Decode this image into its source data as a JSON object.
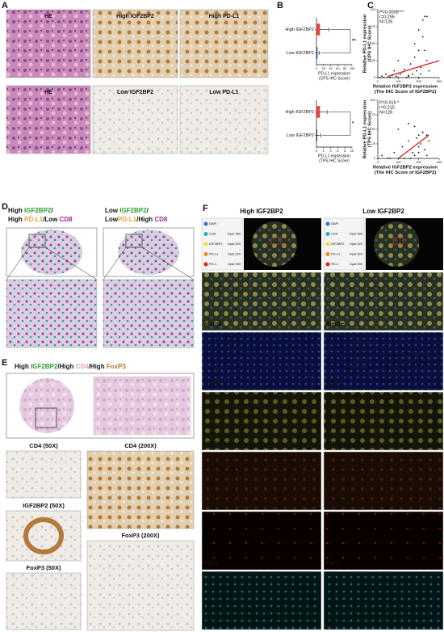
{
  "figure": {
    "A": {
      "label": "A",
      "captions": [
        "HE",
        "High IGF2BP2",
        "High PD-L1",
        "HE",
        "Low IGF2BP2",
        "Low PD-L1"
      ]
    },
    "B": {
      "label": "B"
    },
    "C": {
      "label": "C"
    },
    "D": {
      "label": "D",
      "left_title": [
        [
          {
            "text": "High ",
            "color": "#111111"
          },
          {
            "text": "IGF2BP2",
            "color": "#2ca02c"
          },
          {
            "text": "/",
            "color": "#111111"
          }
        ],
        [
          {
            "text": "High ",
            "color": "#111111"
          },
          {
            "text": "PD-L1",
            "color": "#e8a040"
          },
          {
            "text": "/Low ",
            "color": "#111111"
          },
          {
            "text": "CD8",
            "color": "#a0288c"
          }
        ]
      ],
      "right_title": [
        [
          {
            "text": "Low ",
            "color": "#111111"
          },
          {
            "text": "IGF2BP2",
            "color": "#2ca02c"
          },
          {
            "text": "/",
            "color": "#111111"
          }
        ],
        [
          {
            "text": "Low",
            "color": "#111111"
          },
          {
            "text": "PD-L1",
            "color": "#e8a040"
          },
          {
            "text": "/High ",
            "color": "#111111"
          },
          {
            "text": "CD8",
            "color": "#a0288c"
          }
        ]
      ]
    },
    "E": {
      "label": "E",
      "title": [
        {
          "text": "High ",
          "color": "#111111"
        },
        {
          "text": "IGF2BP2",
          "color": "#2ca02c"
        },
        {
          "text": "/High ",
          "color": "#111111"
        },
        {
          "text": "CD4",
          "color": "#e6a0c8"
        },
        {
          "text": "/High ",
          "color": "#111111"
        },
        {
          "text": "FoxP3",
          "color": "#b0782a"
        }
      ],
      "captions": [
        "CD4 (50X)",
        "CD4 (200X)",
        "IGF2BP2 (50X)",
        "FoxP3 (50X)",
        "FoxP3 (200X)"
      ]
    },
    "F": {
      "label": "F",
      "columns": [
        "High IGF2BP2",
        "Low IGF2BP2"
      ],
      "legend": [
        {
          "name": "DAPI",
          "color": "#3a6fd8"
        },
        {
          "name": "CD8",
          "opal": "Opal 480",
          "color": "#20b0c0"
        },
        {
          "name": "IGF2BP2",
          "opal": "Opal 520",
          "color": "#e8e030"
        },
        {
          "name": "PD-L1",
          "opal": "Opal 620",
          "color": "#e88a20"
        },
        {
          "name": "PD-1",
          "opal": "Opal 690",
          "color": "#e02020"
        }
      ],
      "rows": [
        {
          "name": "Merge",
          "color": "#ffffff"
        },
        {
          "name": "DAPI",
          "color": "#3a6fd8"
        },
        {
          "name": "IGF2BP2",
          "color": "#e8e030"
        },
        {
          "name": "PD-L1",
          "color": "#e88a20"
        },
        {
          "name": "PD-1",
          "color": "#e02020"
        },
        {
          "name": "CD8",
          "color": "#20b0c0"
        }
      ]
    }
  },
  "chart_data": [
    {
      "type": "bar",
      "orientation": "horizontal",
      "categories": [
        "High IGF2BP2",
        "Low IGF2BP2"
      ],
      "values": [
        10,
        3
      ],
      "errors": [
        25,
        5
      ],
      "colors": [
        "#e8423a",
        "#2a4d8f"
      ],
      "xlim": [
        0,
        100
      ],
      "xticks": [
        0,
        20,
        40,
        60,
        80,
        100
      ],
      "xlabel": [
        "PD-L1 expression",
        "(CPS IHC Score)"
      ],
      "significance": "**"
    },
    {
      "type": "bar",
      "orientation": "horizontal",
      "categories": [
        "High IGF2BP2",
        "Low IGF2BP2"
      ],
      "values": [
        1,
        0.2
      ],
      "errors": [
        2,
        1
      ],
      "colors": [
        "#e8423a",
        "#111111"
      ],
      "xlim": [
        0,
        10
      ],
      "xticks": [
        0,
        2,
        4,
        6,
        8,
        10
      ],
      "xlabel": [
        "PD-L1 expression",
        "(TPS IHC Score)"
      ],
      "significance": "*"
    },
    {
      "type": "scatter",
      "annotations": [
        "P=0.0008***",
        "r=0.295",
        "N=126"
      ],
      "x": [
        10,
        20,
        30,
        40,
        50,
        60,
        70,
        80,
        90,
        100,
        110,
        120,
        130,
        140,
        150,
        160,
        170,
        180,
        190,
        200,
        200,
        210,
        220,
        230,
        240,
        250,
        180,
        200,
        220,
        240,
        150,
        100,
        60,
        210,
        230
      ],
      "y": [
        0,
        2,
        0,
        5,
        1,
        0,
        3,
        10,
        2,
        0,
        5,
        8,
        12,
        0,
        3,
        20,
        5,
        30,
        10,
        40,
        0,
        15,
        60,
        90,
        25,
        10,
        50,
        70,
        85,
        90,
        2,
        25,
        0,
        5,
        40
      ],
      "trend": {
        "x": [
          50,
          300
        ],
        "y": [
          2,
          25
        ],
        "color": "#e02020"
      },
      "xlim": [
        0,
        300
      ],
      "xticks": [
        0,
        100,
        200,
        300
      ],
      "ylim": [
        0,
        100
      ],
      "yticks": [
        0,
        25,
        50,
        75,
        100
      ],
      "xlabel": [
        "Relative IGF2BP2 expression",
        "(The IHC Score of IGF2BP2)"
      ],
      "ylabel": [
        "Relative PD-L1 expression",
        "(CPS IHC Score)"
      ]
    },
    {
      "type": "scatter",
      "annotations": [
        "P=0.016 *",
        "r=0.215",
        "N=126"
      ],
      "x": [
        20,
        50,
        80,
        100,
        120,
        150,
        160,
        180,
        200,
        200,
        210,
        220,
        230,
        240,
        250,
        100,
        150,
        180,
        200,
        220,
        130,
        170,
        60,
        240,
        190
      ],
      "y": [
        5,
        0,
        10,
        0,
        20,
        30,
        0,
        5,
        40,
        10,
        25,
        45,
        15,
        40,
        30,
        50,
        60,
        55,
        20,
        45,
        0,
        10,
        0,
        5,
        35
      ],
      "trend": {
        "x": [
          100,
          250
        ],
        "y": [
          0,
          40
        ],
        "color": "#e02020"
      },
      "xlim": [
        0,
        300
      ],
      "xticks": [
        0,
        100,
        200,
        300
      ],
      "ylim": [
        0,
        100
      ],
      "yticks": [
        0,
        25,
        50,
        75,
        100
      ],
      "xlabel": [
        "Relative IGF2BP2 expression",
        "(The IHC Score of IGF2BP2)"
      ],
      "ylabel": [
        "Relative PD-L1 expression",
        "(TPS IHC Score)"
      ]
    }
  ]
}
